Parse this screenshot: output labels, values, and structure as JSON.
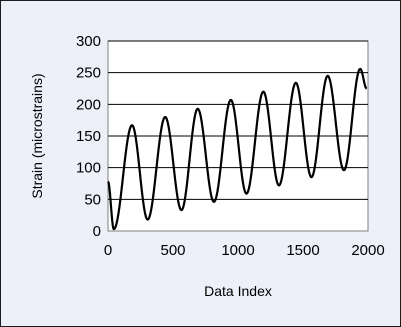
{
  "chart_data": {
    "type": "line",
    "title": "",
    "xlabel": "Data Index",
    "ylabel": "Strain (microstrains)",
    "xlim": [
      0,
      2000
    ],
    "ylim": [
      0,
      300
    ],
    "x_ticks": [
      0,
      500,
      1000,
      1500,
      2000
    ],
    "y_ticks": [
      0,
      50,
      100,
      150,
      200,
      250,
      300
    ],
    "grid": "horizontal",
    "legend": "none",
    "colors": {
      "line": "#000000",
      "frame_bg": "#eef0f9",
      "plot_bg": "#ffffff",
      "grid": "#000000"
    },
    "series": [
      {
        "x": [
          0,
          45,
          185,
          305,
          440,
          565,
          690,
          815,
          945,
          1065,
          1195,
          1315,
          1445,
          1565,
          1690,
          1815,
          1940,
          1990
        ],
        "y": [
          78,
          3,
          167,
          18,
          180,
          33,
          193,
          46,
          207,
          59,
          220,
          72,
          234,
          85,
          245,
          96,
          256,
          225
        ]
      }
    ]
  }
}
